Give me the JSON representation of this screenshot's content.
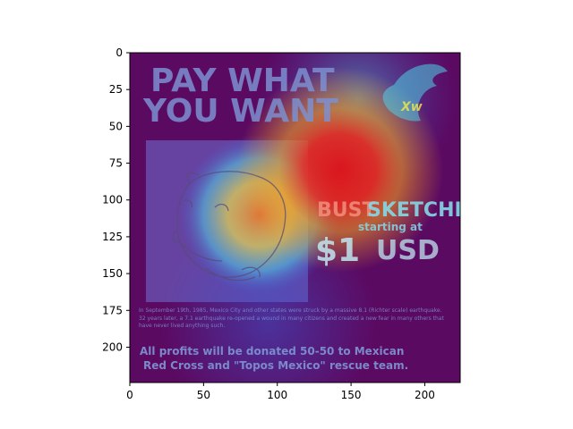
{
  "image_axes": {
    "xlim": [
      0,
      224
    ],
    "ylim": [
      224,
      0
    ],
    "x_ticks": [
      0,
      50,
      100,
      150,
      200
    ],
    "y_ticks": [
      0,
      25,
      50,
      75,
      100,
      125,
      150,
      175,
      200
    ],
    "colormap": "jet overlay",
    "heat_peak_data": [
      142,
      80
    ]
  },
  "poster": {
    "headline_line1": "PAY WHAT",
    "headline_line2": "YOU WANT",
    "logo_text": "Xw",
    "bust_word": "BUST",
    "sketches_word": "SKETCHES",
    "starting_at": "starting at",
    "price": "$1",
    "currency": "USD",
    "body_text": "In September 19th, 1985, Mexico City and other states were struck by a massive 8.1 (Richter scale) earthquake. 32 years later, a 7.1 earthquake re-opened a wound in many citizens and created a new fear in many others that have never lived anything such.",
    "donation_line1": "All profits will be donated 50-50 to Mexican",
    "donation_line2": "Red Cross and \"Topos Mexico\" rescue team."
  },
  "colors": {
    "background": "#5b0a62",
    "headline": "#7d8fd0",
    "bust": "#f08a7a",
    "sketches": "#84d8e8",
    "price": "#bfe6f0",
    "sketch_box": "#6f72d6",
    "heat_red": "#e0161a",
    "heat_orange": "#f39a1e",
    "heat_yellow": "#f2e84a",
    "heat_cyan": "#4fd1e6",
    "heat_blue": "#3a5ad6"
  }
}
